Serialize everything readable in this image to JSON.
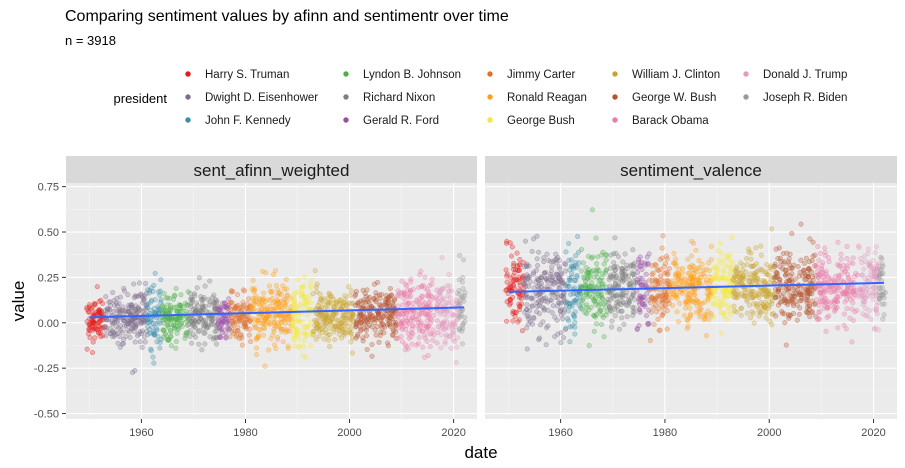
{
  "title": "Comparing sentiment values by afinn and sentimentr over time",
  "subtitle": "n = 3918",
  "chart_data": {
    "type": "scatter",
    "x_axis": {
      "label": "date",
      "range": [
        1945.5,
        2024.5
      ],
      "ticks": [
        1960,
        1980,
        2000,
        2020
      ]
    },
    "y_axis": {
      "label": "value",
      "range": [
        -0.53,
        0.77
      ],
      "ticks": [
        -0.5,
        -0.25,
        0.0,
        0.25,
        0.5,
        0.75
      ],
      "tick_labels": [
        "-0.50",
        "-0.25",
        "0.00",
        "0.25",
        "0.50",
        "0.75"
      ]
    },
    "grid": true,
    "legend": {
      "title": "president",
      "placement": "top",
      "entries": [
        {
          "name": "Harry S. Truman",
          "color": "#E41A1C",
          "start": 1949.5,
          "end": 1953.0
        },
        {
          "name": "Dwight D. Eisenhower",
          "color": "#7F6D8A",
          "start": 1953.0,
          "end": 1961.0
        },
        {
          "name": "John F. Kennedy",
          "color": "#3A8FA8",
          "start": 1961.0,
          "end": 1963.9
        },
        {
          "name": "Lyndon B. Johnson",
          "color": "#4DAF4A",
          "start": 1963.9,
          "end": 1969.0
        },
        {
          "name": "Richard Nixon",
          "color": "#7E7E7E",
          "start": 1969.0,
          "end": 1974.6
        },
        {
          "name": "Gerald R. Ford",
          "color": "#984EA3",
          "start": 1974.6,
          "end": 1977.0
        },
        {
          "name": "Jimmy Carter",
          "color": "#E0712C",
          "start": 1977.0,
          "end": 1981.0
        },
        {
          "name": "Ronald Reagan",
          "color": "#FF9F1A",
          "start": 1981.0,
          "end": 1989.0
        },
        {
          "name": "George Bush",
          "color": "#F5E83A",
          "start": 1989.0,
          "end": 1993.0
        },
        {
          "name": "William J. Clinton",
          "color": "#C9A432",
          "start": 1993.0,
          "end": 2001.0
        },
        {
          "name": "George W. Bush",
          "color": "#B5542F",
          "start": 2001.0,
          "end": 2009.0
        },
        {
          "name": "Barack Obama",
          "color": "#EA7CA8",
          "start": 2009.0,
          "end": 2017.0
        },
        {
          "name": "Donald J. Trump",
          "color": "#E29AC0",
          "start": 2017.0,
          "end": 2021.0
        },
        {
          "name": "Joseph R. Biden",
          "color": "#999999",
          "start": 2021.0,
          "end": 2022.3
        }
      ]
    },
    "panels": [
      {
        "name": "sent_afinn_weighted",
        "trend": {
          "x": [
            1950,
            2022
          ],
          "y": [
            0.03,
            0.085
          ],
          "color": "#3366FF"
        },
        "point_stats": [
          [
            0.02,
            0.08
          ],
          [
            0.04,
            0.1
          ],
          [
            0.02,
            0.12
          ],
          [
            0.03,
            0.09
          ],
          [
            0.04,
            0.1
          ],
          [
            0.03,
            0.09
          ],
          [
            0.04,
            0.09
          ],
          [
            0.05,
            0.1
          ],
          [
            0.04,
            0.14
          ],
          [
            0.03,
            0.1
          ],
          [
            0.05,
            0.1
          ],
          [
            0.06,
            0.12
          ],
          [
            0.07,
            0.12
          ],
          [
            0.08,
            0.15
          ]
        ]
      },
      {
        "name": "sentiment_valence",
        "trend": {
          "x": [
            1950,
            2022
          ],
          "y": [
            0.17,
            0.22
          ],
          "color": "#3366FF"
        },
        "point_stats": [
          [
            0.18,
            0.15
          ],
          [
            0.18,
            0.15
          ],
          [
            0.17,
            0.17
          ],
          [
            0.2,
            0.15
          ],
          [
            0.18,
            0.14
          ],
          [
            0.18,
            0.14
          ],
          [
            0.18,
            0.14
          ],
          [
            0.19,
            0.12
          ],
          [
            0.2,
            0.13
          ],
          [
            0.2,
            0.13
          ],
          [
            0.19,
            0.13
          ],
          [
            0.19,
            0.13
          ],
          [
            0.21,
            0.13
          ],
          [
            0.22,
            0.13
          ]
        ]
      }
    ],
    "n": 3918
  }
}
